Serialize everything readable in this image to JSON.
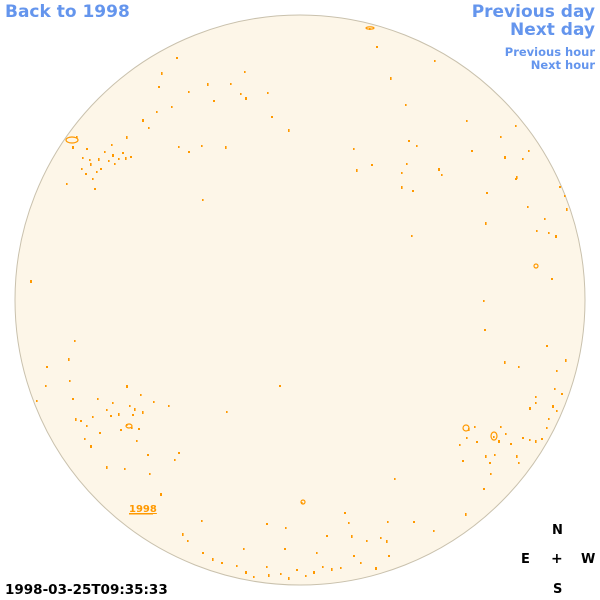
{
  "navigation": {
    "back_label": "Back to 1998",
    "previous_day_label": "Previous day",
    "next_day_label": "Next day",
    "previous_hour_label": "Previous hour",
    "next_hour_label": "Next hour",
    "link_color": "#6495ed"
  },
  "image": {
    "timestamp": "1998-03-25T09:35:33",
    "disk_fill_color": "#fdf6e8",
    "disk_border_color": "#c9c1ad",
    "region_color": "#ff9900",
    "year_marker_label": "1998"
  },
  "compass": {
    "north": "N",
    "east": "E",
    "west": "W",
    "south": "S",
    "center": "+"
  }
}
